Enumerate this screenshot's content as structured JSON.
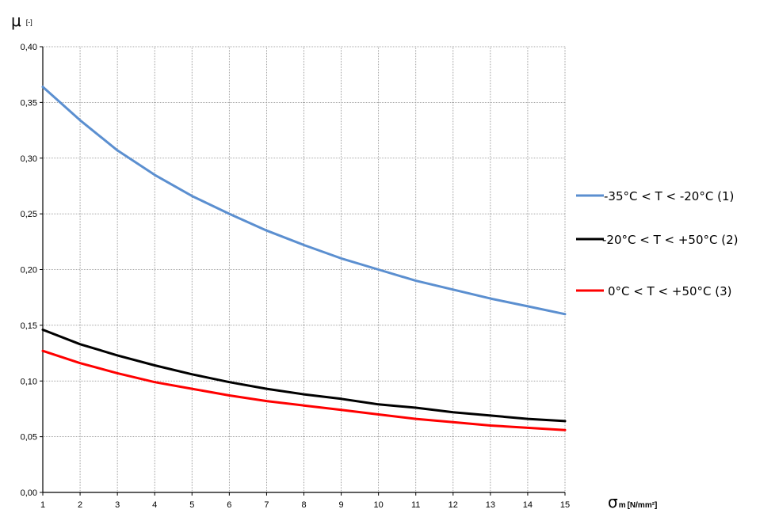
{
  "chart_data": {
    "type": "line",
    "ylabel": "μ",
    "ylabel_unit": "[-]",
    "xlabel": "σ",
    "xlabel_sub": "m",
    "xlabel_unit": "[N/mm²]",
    "xlim": [
      1,
      15
    ],
    "ylim": [
      0,
      0.4
    ],
    "x_ticks": [
      "1",
      "2",
      "3",
      "4",
      "5",
      "6",
      "7",
      "8",
      "9",
      "10",
      "11",
      "12",
      "13",
      "14",
      "15"
    ],
    "y_ticks": [
      "0,00",
      "0,05",
      "0,10",
      "0,15",
      "0,20",
      "0,25",
      "0,30",
      "0,35",
      "0,40"
    ],
    "grid": true,
    "legend_position": "right",
    "x": [
      1,
      2,
      3,
      4,
      5,
      6,
      7,
      8,
      9,
      10,
      11,
      12,
      13,
      14,
      15
    ],
    "series": [
      {
        "name": "-35°C < T < -20°C (1)",
        "color": "#5b8fd0",
        "values": [
          0.364,
          0.334,
          0.307,
          0.285,
          0.266,
          0.25,
          0.235,
          0.222,
          0.21,
          0.2,
          0.19,
          0.182,
          0.174,
          0.167,
          0.16
        ]
      },
      {
        "name": "-20°C < T < +50°C (2)",
        "color": "#000000",
        "values": [
          0.146,
          0.133,
          0.123,
          0.114,
          0.106,
          0.099,
          0.093,
          0.088,
          0.084,
          0.079,
          0.076,
          0.072,
          0.069,
          0.066,
          0.064
        ]
      },
      {
        "name": "0°C < T < +50°C (3)",
        "color": "#ff0000",
        "values": [
          0.127,
          0.116,
          0.107,
          0.099,
          0.093,
          0.087,
          0.082,
          0.078,
          0.074,
          0.07,
          0.066,
          0.063,
          0.06,
          0.058,
          0.056
        ]
      }
    ]
  }
}
